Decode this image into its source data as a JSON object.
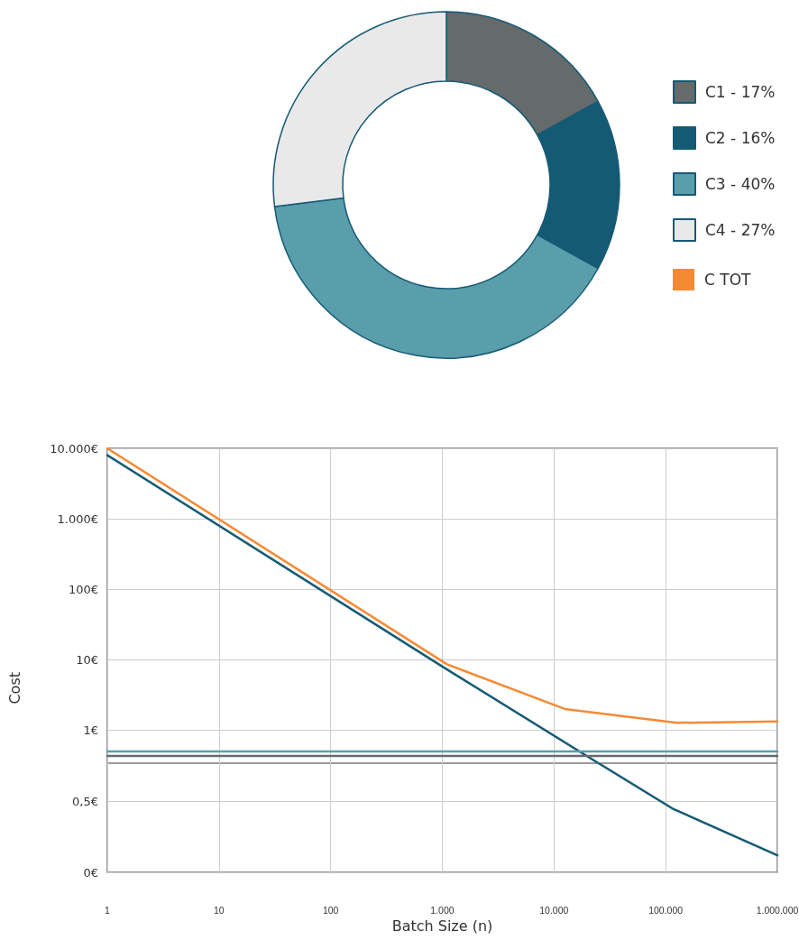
{
  "chart_data": [
    {
      "type": "donut",
      "categories": [
        "C1 - 17%",
        "C2 - 16%",
        "C3 - 40%",
        "C4 - 27%"
      ],
      "values": [
        17,
        16,
        40,
        27
      ],
      "colors": [
        "#656a6b",
        "#155a75",
        "#5b9eab",
        "#e9e9e9"
      ],
      "legend": "right"
    },
    {
      "type": "line",
      "ylabel": "Cost",
      "log": "xy",
      "xlim": [
        1,
        1000000
      ],
      "ylim": [
        0.34,
        10000
      ],
      "xticks": [
        1,
        10,
        100,
        1000,
        10000,
        100000,
        1000000
      ],
      "yticks": [
        {
          "value": 1,
          "label": "1€"
        },
        {
          "value": 10,
          "label": "10€"
        },
        {
          "value": 100,
          "label": "100€"
        },
        {
          "value": 1000,
          "label": "1.000€"
        },
        {
          "value": 10000,
          "label": "10.000€"
        }
      ],
      "tick_labels": "y",
      "grid": true,
      "legend": "top right",
      "marker": "none",
      "line_style": "solid",
      "series": [
        {
          "name": "C TOT",
          "color": "#f58a35",
          "x": [
            1,
            1100,
            12500,
            126000,
            1000000
          ],
          "values": [
            10000,
            8.6,
            2.0,
            1.27,
            1.33
          ]
        },
        {
          "color": "#155a75",
          "x": [
            1,
            1000,
            25000
          ],
          "values": [
            8000,
            8,
            0.34
          ]
        },
        {
          "color": "#5b9eab",
          "x": [
            1,
            1000000
          ],
          "values": [
            0.5,
            0.5
          ]
        },
        {
          "color": "#656a6b",
          "x": [
            1,
            1000000
          ],
          "values": [
            0.43,
            0.43
          ]
        }
      ]
    },
    {
      "type": "line",
      "xlabel": "Batch Size (n)",
      "log": "x",
      "xlim": [
        1,
        1000000
      ],
      "ylim": [
        0,
        0.77
      ],
      "xticks": [
        1,
        10,
        100,
        {
          "value": 1000,
          "label": "1.000"
        },
        {
          "value": 10000,
          "label": "10.000"
        },
        {
          "value": 100000,
          "label": "100.000"
        },
        {
          "value": 1000000,
          "label": "1.000.000"
        }
      ],
      "yticks": [
        {
          "value": 0,
          "label": "0€"
        },
        {
          "value": 0.5,
          "label": "0,5€"
        }
      ],
      "grid": true,
      "marker": "none",
      "line_style": "solid",
      "series": [
        {
          "color": "#155a75",
          "x": [
            25000,
            115000,
            1000000
          ],
          "values": [
            0.77,
            0.45,
            0.12
          ]
        }
      ]
    }
  ]
}
